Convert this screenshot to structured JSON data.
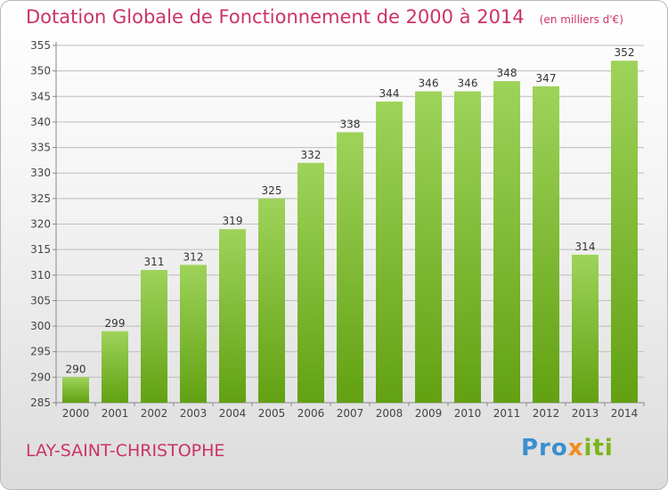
{
  "header": {
    "title": "Dotation Globale de Fonctionnement de 2000 à 2014",
    "unit": "(en milliers d'€)"
  },
  "footer": {
    "commune": "LAY-SAINT-CHRISTOPHE",
    "logo": [
      "Pro",
      "x",
      "iti"
    ]
  },
  "colors": {
    "title": "#cc3366",
    "bar_light": "#9ed35a",
    "bar_dark": "#62a112",
    "grid": "#bdbdbd"
  },
  "chart_data": {
    "type": "bar",
    "title": "Dotation Globale de Fonctionnement de 2000 à 2014",
    "xlabel": "",
    "ylabel": "",
    "ylim": [
      285,
      355
    ],
    "yticks": [
      285,
      290,
      295,
      300,
      305,
      310,
      315,
      320,
      325,
      330,
      335,
      340,
      345,
      350,
      355
    ],
    "grid": true,
    "categories": [
      "2000",
      "2001",
      "2002",
      "2003",
      "2004",
      "2005",
      "2006",
      "2007",
      "2008",
      "2009",
      "2010",
      "2011",
      "2012",
      "2013",
      "2014"
    ],
    "values": [
      290,
      299,
      311,
      312,
      319,
      325,
      332,
      338,
      344,
      346,
      346,
      348,
      347,
      314,
      352
    ]
  }
}
